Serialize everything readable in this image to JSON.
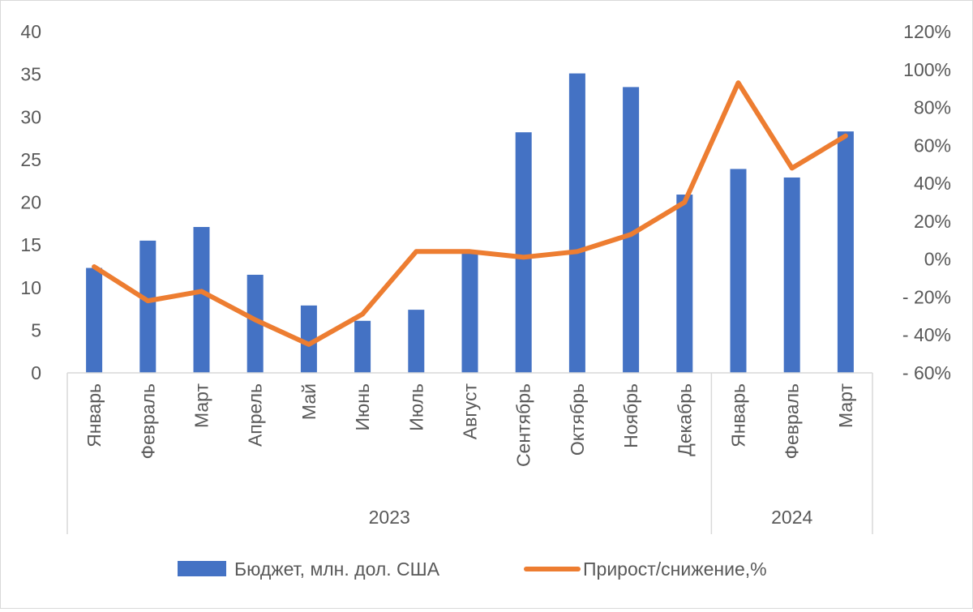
{
  "chart_data": {
    "type": "bar",
    "categories": [
      "Январь",
      "Февраль",
      "Март",
      "Апрель",
      "Май",
      "Июнь",
      "Июль",
      "Август",
      "Сентябрь",
      "Октябрь",
      "Ноябрь",
      "Декабрь",
      "Январь",
      "Февраль",
      "Март"
    ],
    "groups": [
      {
        "label": "2023",
        "count": 12
      },
      {
        "label": "2024",
        "count": 3
      }
    ],
    "series": [
      {
        "name": "Бюджет, млн. дол. США",
        "type": "bar",
        "axis": "left",
        "color": "#4472C4",
        "values": [
          12.3,
          15.5,
          17.1,
          11.5,
          7.9,
          6.1,
          7.4,
          14.0,
          28.2,
          35.1,
          33.5,
          20.9,
          23.9,
          22.9,
          28.3
        ]
      },
      {
        "name": "Прирост/снижение,%",
        "type": "line",
        "axis": "right",
        "color": "#ED7D31",
        "values": [
          -4,
          -22,
          -17,
          -32,
          -45,
          -29,
          4,
          4,
          1,
          4,
          13,
          30,
          93,
          48,
          65
        ]
      }
    ],
    "left_axis": {
      "min": 0,
      "max": 40,
      "step": 5,
      "tick_labels": [
        "0",
        "5",
        "10",
        "15",
        "20",
        "25",
        "30",
        "35",
        "40"
      ]
    },
    "right_axis": {
      "min": -60,
      "max": 120,
      "step": 20,
      "tick_labels": [
        "- 60%",
        "- 40%",
        "- 20%",
        "0%",
        "20%",
        "40%",
        "60%",
        "80%",
        "100%",
        "120%"
      ]
    },
    "grid": false,
    "legend_position": "bottom"
  }
}
